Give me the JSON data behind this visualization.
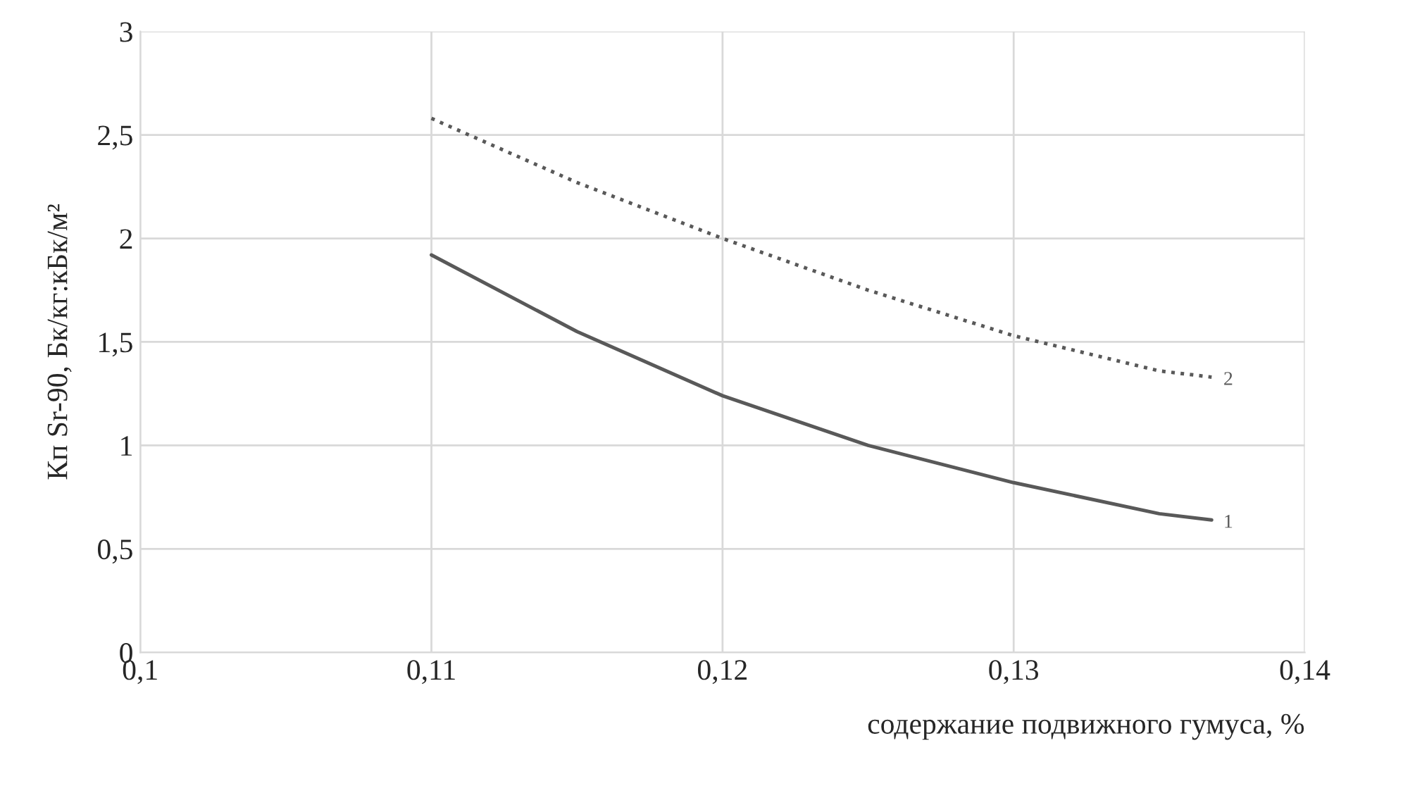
{
  "chart_data": {
    "type": "line",
    "xlabel": "содержание подвижного гумуса, %",
    "ylabel": "Кп Sr-90, Бк/кг:кБк/м²",
    "xlim": [
      0.1,
      0.14
    ],
    "xticks": [
      {
        "value": 0.1,
        "label": "0,1"
      },
      {
        "value": 0.11,
        "label": "0,11"
      },
      {
        "value": 0.12,
        "label": "0,12"
      },
      {
        "value": 0.13,
        "label": "0,13"
      },
      {
        "value": 0.14,
        "label": "0,14"
      }
    ],
    "ylim": [
      0,
      3
    ],
    "yticks": [
      0,
      {
        "value": 0.5,
        "label": "0,5"
      },
      1,
      {
        "value": 1.5,
        "label": "1,5"
      },
      2,
      {
        "value": 2.5,
        "label": "2,5"
      },
      3
    ],
    "grid": true,
    "legend": false,
    "marker": "none",
    "series": [
      {
        "name": "1",
        "color": "#595959",
        "line_style": "solid",
        "x": [
          0.11,
          0.115,
          0.12,
          0.125,
          0.13,
          0.135,
          0.1368
        ],
        "values": [
          1.92,
          1.55,
          1.24,
          1.0,
          0.82,
          0.67,
          0.64
        ]
      },
      {
        "name": "2",
        "color": "#595959",
        "line_style": "dotted",
        "x": [
          0.11,
          0.115,
          0.12,
          0.125,
          0.13,
          0.135,
          0.1368
        ],
        "values": [
          2.58,
          2.27,
          2.0,
          1.75,
          1.53,
          1.36,
          1.33
        ]
      }
    ]
  }
}
